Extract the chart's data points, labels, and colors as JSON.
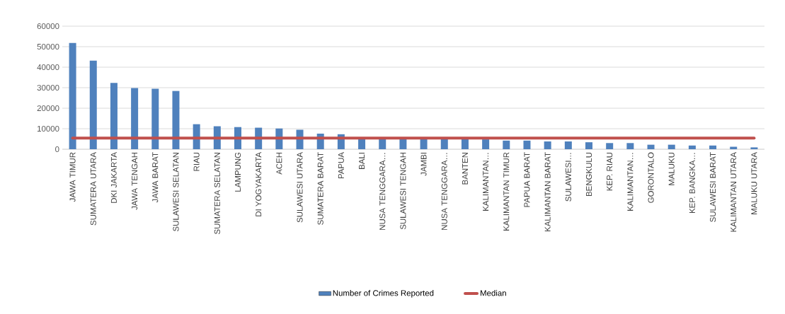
{
  "chart_data": {
    "type": "bar",
    "categories": [
      "JAWA TIMUR",
      "SUMATERA UTARA",
      "DKI JAKARTA",
      "JAWA TENGAH",
      "JAWA BARAT",
      "SULAWESI SELATAN",
      "RIAU",
      "SUMATERA SELATAN",
      "LAMPUNG",
      "DI YOGYAKARTA",
      "ACEH",
      "SULAWESI UTARA",
      "SUMATERA BARAT",
      "PAPUA",
      "BALI",
      "NUSA TENGGARA…",
      "SULAWESI TENGAH",
      "JAMBI",
      "NUSA TENGGARA…",
      "BANTEN",
      "KALIMANTAN…",
      "KALIMANTAN TIMUR",
      "PAPUA BARAT",
      "KALIMANTAN BARAT",
      "SULAWESI…",
      "BENGKULU",
      "KEP. RIAU",
      "KALIMANTAN…",
      "GORONTALO",
      "MALUKU",
      "KEP. BANGKA…",
      "SULAWESI BARAT",
      "KALIMANTAN UTARA",
      "MALUKU UTARA"
    ],
    "series": [
      {
        "name": "Number of Crimes Reported",
        "color": "#4f81bd",
        "values": [
          51800,
          43200,
          32300,
          29800,
          29500,
          28400,
          12200,
          11200,
          10800,
          10500,
          10100,
          9500,
          7600,
          7300,
          5800,
          5700,
          5500,
          5300,
          5200,
          5000,
          4800,
          4200,
          4200,
          3800,
          3800,
          3400,
          3000,
          3000,
          2200,
          2200,
          1800,
          1800,
          1200,
          900
        ]
      },
      {
        "name": "Median",
        "type": "line",
        "color": "#c0504d",
        "values": [
          5400,
          5400,
          5400,
          5400,
          5400,
          5400,
          5400,
          5400,
          5400,
          5400,
          5400,
          5400,
          5400,
          5400,
          5400,
          5400,
          5400,
          5400,
          5400,
          5400,
          5400,
          5400,
          5400,
          5400,
          5400,
          5400,
          5400,
          5400,
          5400,
          5400,
          5400,
          5400,
          5400,
          5400
        ]
      }
    ],
    "ylim": [
      0,
      60000
    ],
    "yticks": [
      0,
      10000,
      20000,
      30000,
      40000,
      50000,
      60000
    ],
    "grid": "y",
    "legend": "bottom"
  }
}
